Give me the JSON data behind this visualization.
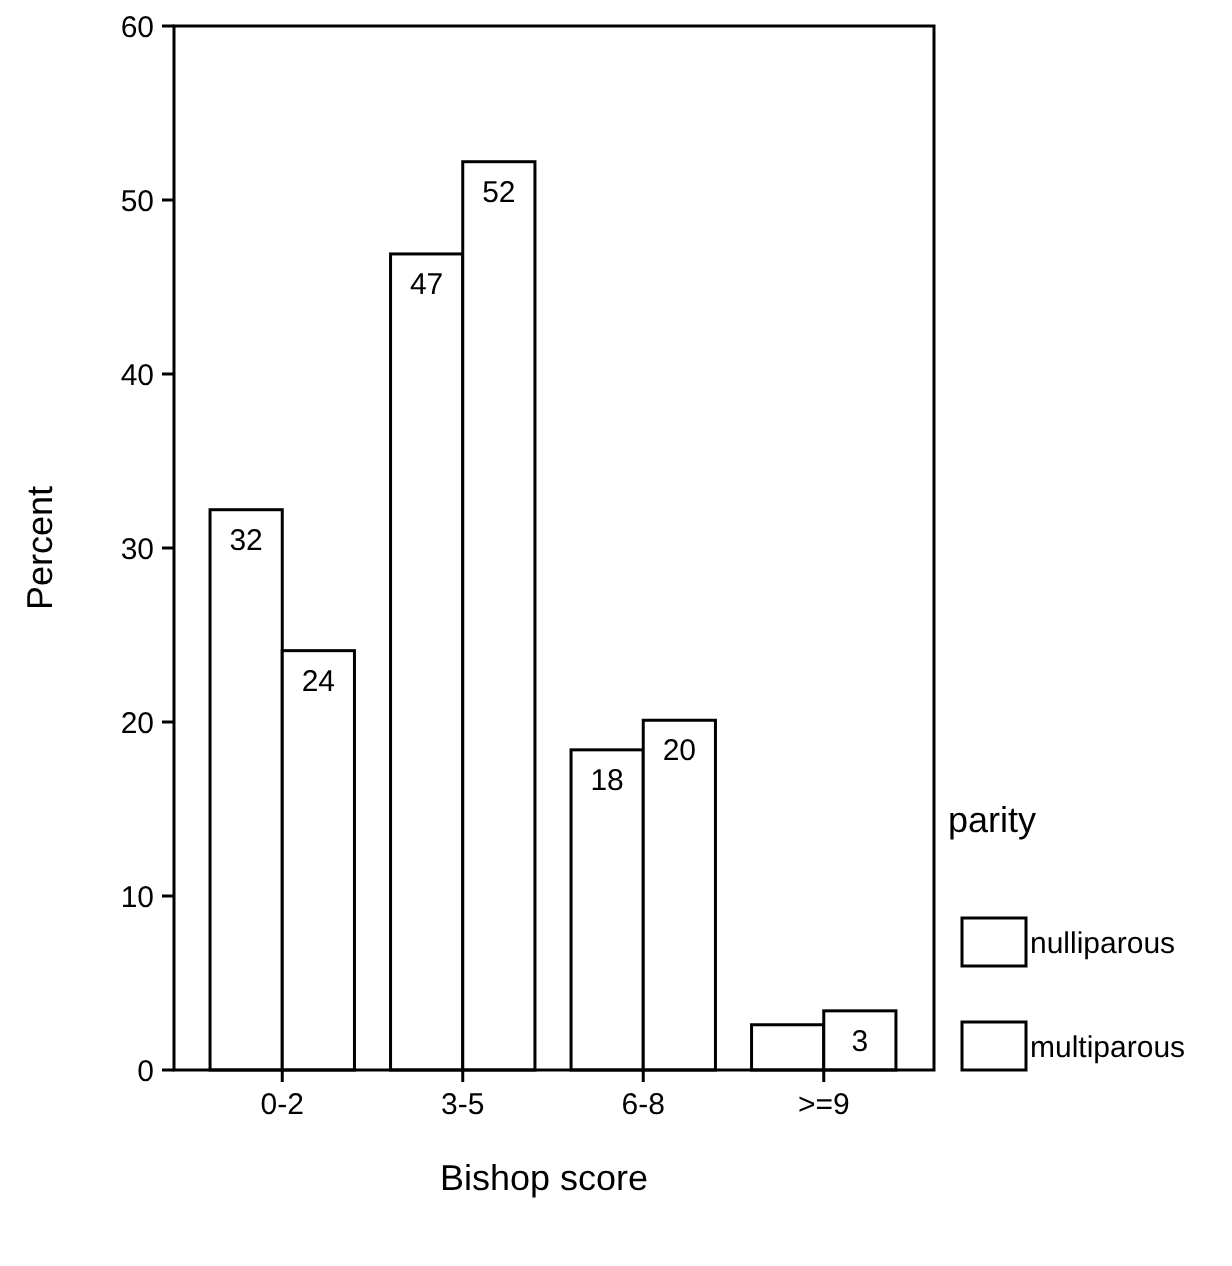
{
  "chart_data": {
    "type": "bar",
    "xlabel": "Bishop score",
    "ylabel": "Percent",
    "legend_title": "parity",
    "categories": [
      "0-2",
      "3-5",
      "6-8",
      ">=9"
    ],
    "series": [
      {
        "name": "nulliparous",
        "color": "#ffffff",
        "values": [
          32.2,
          46.9,
          18.4,
          2.6
        ],
        "value_labels": [
          "32",
          "47",
          "18",
          null
        ]
      },
      {
        "name": "multiparous",
        "color": "#ffffff",
        "values": [
          24.1,
          52.2,
          20.1,
          3.4
        ],
        "value_labels": [
          "24",
          "52",
          "20",
          "3"
        ]
      }
    ],
    "ylim": [
      0,
      60
    ],
    "yticks": [
      0,
      10,
      20,
      30,
      40,
      50,
      60
    ],
    "grid": false,
    "legend": "right"
  }
}
